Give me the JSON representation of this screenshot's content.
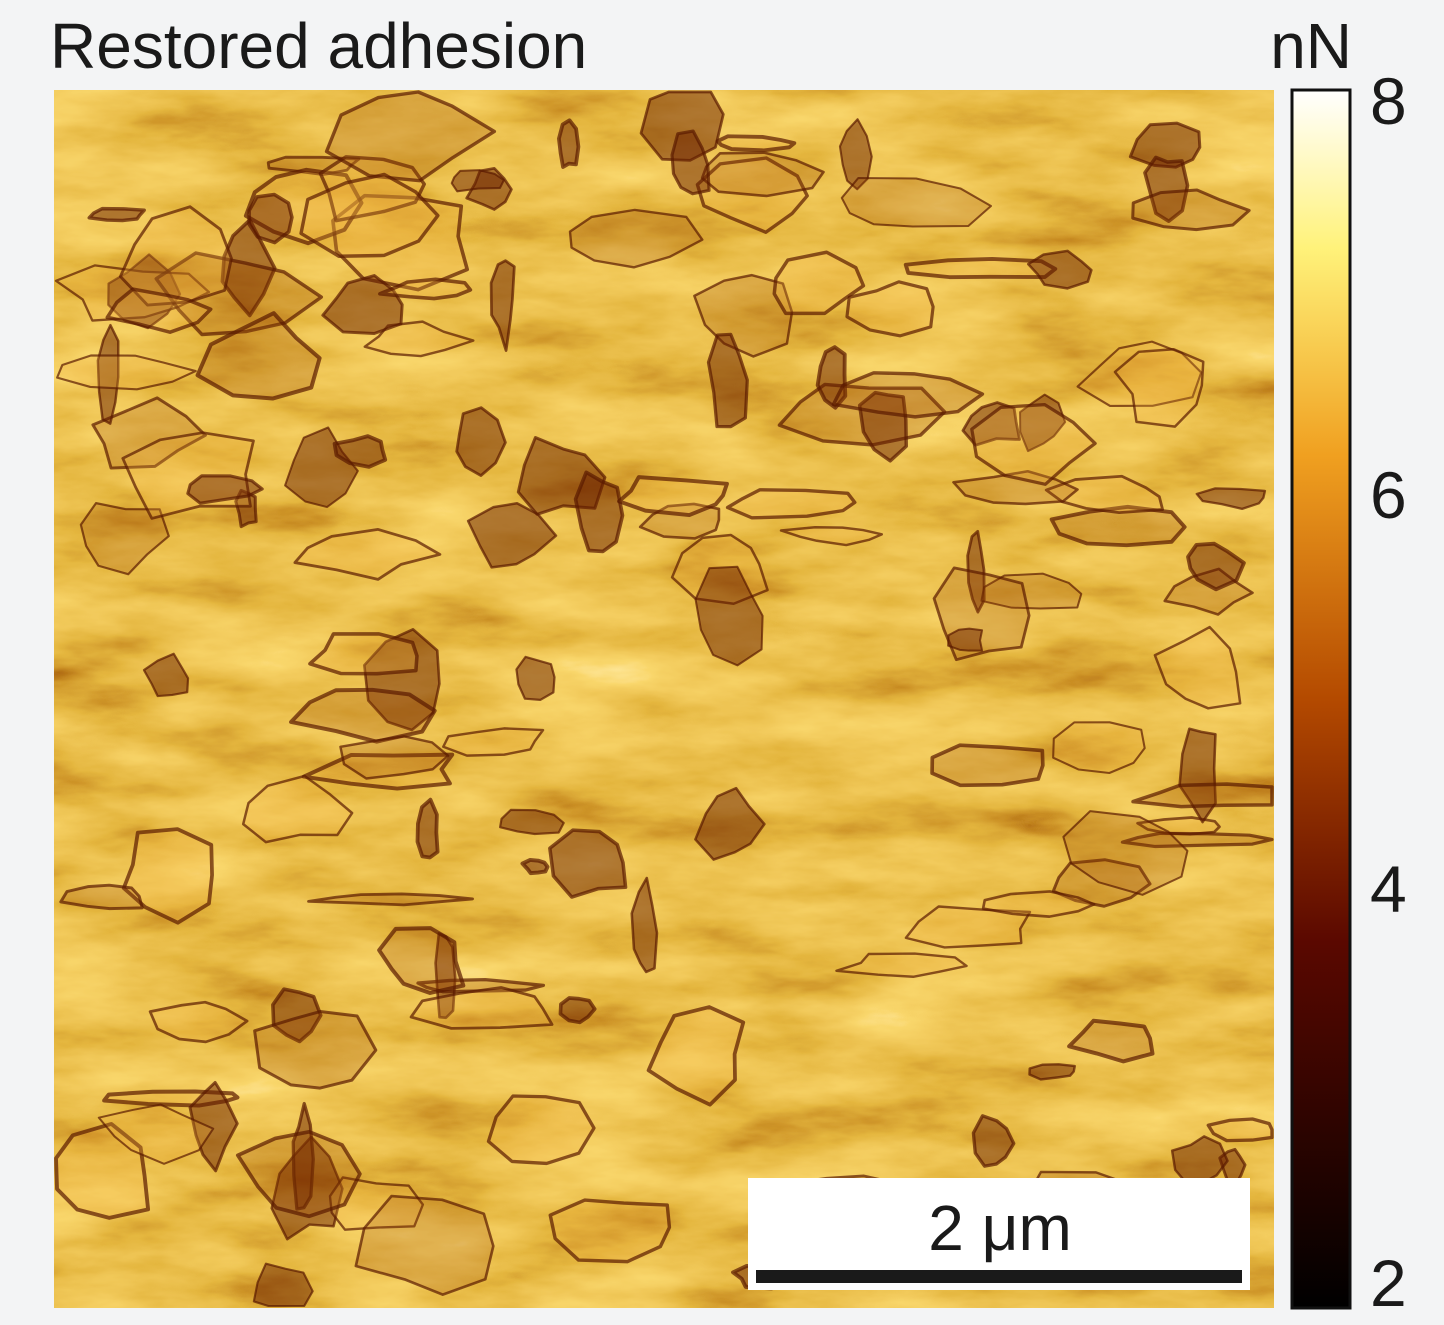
{
  "title": "Restored adhesion",
  "colorbar": {
    "unit": "nN",
    "range": [
      2,
      8
    ],
    "ticks": [
      2,
      4,
      6,
      8
    ]
  },
  "scale_bar": {
    "label": "2 μm"
  }
}
